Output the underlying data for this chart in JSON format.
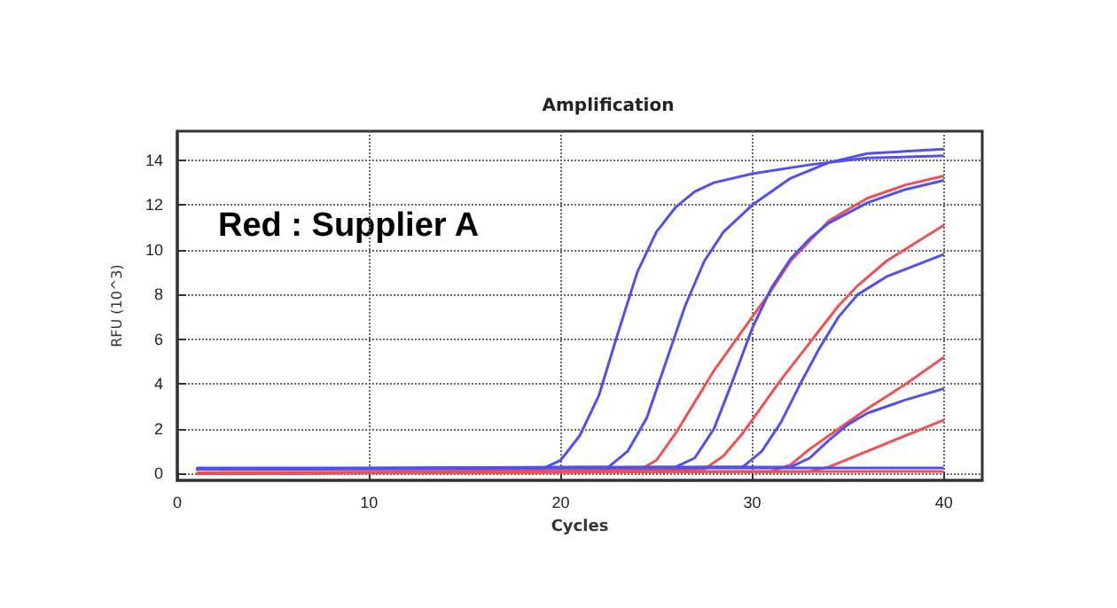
{
  "chart_data": {
    "type": "line",
    "title": "Amplification",
    "xlabel": "Cycles",
    "ylabel": "RFU (10^3)",
    "annotations": [
      "Red : Supplier A"
    ],
    "xlim": [
      0,
      42
    ],
    "xticks": [
      0,
      10,
      20,
      30,
      40
    ],
    "ylim": [
      -0.3,
      15.3
    ],
    "yticks": [
      0,
      2,
      4,
      6,
      8,
      10,
      12,
      14
    ],
    "grid": true,
    "line_style": "solid",
    "marker": "none",
    "series": [
      {
        "color": "#5050f0",
        "x": [
          1,
          19,
          20,
          21,
          22,
          23,
          24,
          25,
          26,
          27,
          28,
          30,
          33,
          36,
          40
        ],
        "values": [
          0.2,
          0.2,
          0.6,
          1.7,
          3.5,
          6.3,
          9,
          10.8,
          11.9,
          12.6,
          13,
          13.4,
          13.8,
          14.1,
          14.2
        ]
      },
      {
        "color": "#5050f0",
        "x": [
          1,
          22.5,
          23.5,
          24.5,
          25.5,
          26.5,
          27.5,
          28.5,
          30,
          32,
          34,
          36,
          40
        ],
        "values": [
          0.2,
          0.3,
          1,
          2.5,
          5,
          7.5,
          9.5,
          10.8,
          12,
          13.2,
          13.9,
          14.3,
          14.5
        ]
      },
      {
        "color": "#f05050",
        "x": [
          1,
          24,
          25,
          26,
          27,
          28,
          29,
          30,
          31,
          32,
          34,
          36,
          38,
          40
        ],
        "values": [
          0,
          0.1,
          0.6,
          1.8,
          3.2,
          4.6,
          5.8,
          7,
          8.2,
          9.5,
          11.3,
          12.3,
          12.9,
          13.3
        ]
      },
      {
        "color": "#5050f0",
        "x": [
          1,
          26,
          27,
          28,
          29,
          30,
          31,
          32,
          33,
          34,
          36,
          38,
          40
        ],
        "values": [
          0.2,
          0.3,
          0.7,
          2,
          4.2,
          6.5,
          8.3,
          9.6,
          10.5,
          11.2,
          12.1,
          12.7,
          13.1
        ]
      },
      {
        "color": "#f05050",
        "x": [
          1,
          27.5,
          28.5,
          29.5,
          30.5,
          31.5,
          32.5,
          33.5,
          34.5,
          35.5,
          37,
          40
        ],
        "values": [
          0,
          0.2,
          0.8,
          1.8,
          3,
          4.2,
          5.3,
          6.4,
          7.5,
          8.4,
          9.5,
          11.1
        ]
      },
      {
        "color": "#5050f0",
        "x": [
          1,
          29.5,
          30.5,
          31.5,
          32.5,
          33.5,
          34.5,
          35.5,
          37,
          40
        ],
        "values": [
          0.2,
          0.3,
          1,
          2.3,
          4,
          5.6,
          7,
          8,
          8.8,
          9.8
        ]
      },
      {
        "color": "#f05050",
        "x": [
          1,
          31,
          32,
          33,
          34,
          35,
          36,
          38,
          40
        ],
        "values": [
          0,
          0.1,
          0.4,
          1.1,
          1.7,
          2.3,
          2.9,
          4,
          5.2
        ]
      },
      {
        "color": "#5050f0",
        "x": [
          1,
          32,
          33,
          34,
          35,
          36,
          38,
          40
        ],
        "values": [
          0.2,
          0.3,
          0.7,
          1.5,
          2.2,
          2.7,
          3.3,
          3.8
        ]
      },
      {
        "color": "#f05050",
        "x": [
          1,
          33,
          34,
          36,
          38,
          40
        ],
        "values": [
          0,
          0.1,
          0.3,
          1,
          1.7,
          2.4
        ]
      },
      {
        "color": "#f05050",
        "x": [
          1,
          40
        ],
        "values": [
          0.05,
          0.1
        ]
      },
      {
        "color": "#5050f0",
        "x": [
          1,
          40
        ],
        "values": [
          0.25,
          0.25
        ]
      }
    ]
  }
}
